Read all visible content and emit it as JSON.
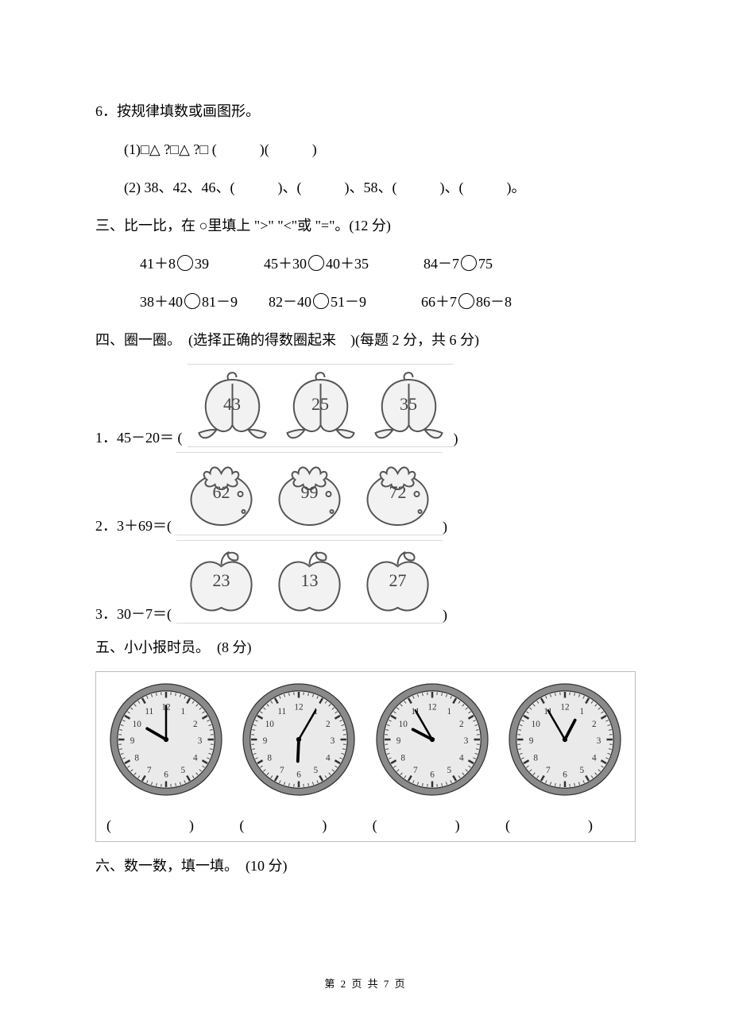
{
  "q6": {
    "title": "6．按规律填数或画图形。",
    "sub1": "(1)□△ ?□△ ?□ (　　　)(　　　)",
    "sub2": "(2) 38、42、46、(　　　)、(　　　)、58、(　　　)、(　　　)。"
  },
  "s3": {
    "title": "三、比一比，在 ○里填上 \">\" \"<\"或 \"=\"。(12 分)",
    "row1": {
      "a": "41＋8",
      "b": "39",
      "c": "45＋30",
      "d": "40＋35",
      "e": "84－7",
      "f": "75"
    },
    "row2": {
      "a": "38＋40",
      "b": "81－9",
      "c": "82－40",
      "d": "51－9",
      "e": "66＋7",
      "f": "86－8"
    }
  },
  "s4": {
    "title": "四、圈一圈。　(选择正确的得数圈起来　)(每题 2 分，共 6 分)",
    "items": [
      {
        "lead": "1．45－20＝ (",
        "tail": ")",
        "nums": [
          "43",
          "25",
          "35"
        ],
        "kind": "peach"
      },
      {
        "lead": "2．3＋69＝(",
        "tail": ")",
        "nums": [
          "62",
          "99",
          "72"
        ],
        "kind": "persimmon"
      },
      {
        "lead": "3．30－7＝(",
        "tail": ")",
        "nums": [
          "23",
          "13",
          "27"
        ],
        "kind": "apple"
      }
    ]
  },
  "s5": {
    "title": "五、小小报时员。　(8 分)",
    "clocks": [
      {
        "hour": 10,
        "minute": 0
      },
      {
        "hour": 6,
        "minute": 5
      },
      {
        "hour": 9,
        "minute": 55
      },
      {
        "hour": 12,
        "minute": 55
      }
    ]
  },
  "s6": {
    "title": "六、数一数，填一填。　(10 分)"
  },
  "footer": {
    "page": "2",
    "total": "7",
    "prefix": "第 ",
    "mid": " 页 共 ",
    "suffix": " 页"
  },
  "style": {
    "stroke": "#555555",
    "fill": "#f2f2f2",
    "clock_face": "#eaeaea",
    "clock_ring": "#8a8a8a"
  }
}
